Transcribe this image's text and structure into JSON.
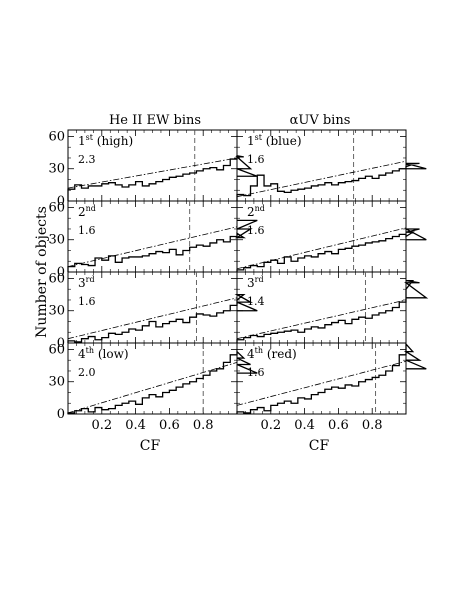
{
  "figure": {
    "ylabel": "Number of objects",
    "xlabel": "CF",
    "column_titles": [
      "He II EW bins",
      "αUV bins"
    ],
    "x_ticks": [
      "0.2",
      "0.4",
      "0.6",
      "0.8"
    ],
    "y_ticks": [
      "0",
      "30",
      "60"
    ]
  },
  "chart_data": [
    {
      "type": "histogram",
      "column": "He II EW bins",
      "row": 1,
      "label": "1st (high)",
      "label_main": "1",
      "label_sup": "st",
      "label_rest": " (high)",
      "value_text": "2.3",
      "ylim": [
        0,
        66
      ],
      "xlim": [
        0,
        1
      ],
      "dashed_vline": 0.75,
      "fit_line": [
        [
          0,
          12
        ],
        [
          1,
          40
        ]
      ],
      "bin_width": 0.04,
      "counts": [
        11,
        15,
        12,
        14,
        14,
        16,
        17,
        15,
        13,
        15,
        18,
        14,
        16,
        18,
        20,
        22,
        23,
        25,
        26,
        28,
        30,
        31,
        29,
        33,
        39,
        42,
        41,
        30,
        23
      ]
    },
    {
      "type": "histogram",
      "column": "αUV bins",
      "row": 1,
      "label": "1st (blue)",
      "label_main": "1",
      "label_sup": "st",
      "label_rest": " (blue)",
      "value_text": "1.6",
      "ylim": [
        0,
        66
      ],
      "xlim": [
        0,
        1
      ],
      "dashed_vline": 0.69,
      "fit_line": [
        [
          0,
          4
        ],
        [
          1,
          37
        ]
      ],
      "bin_width": 0.04,
      "counts": [
        6,
        5,
        14,
        24,
        14,
        16,
        9,
        8,
        10,
        11,
        12,
        14,
        15,
        17,
        15,
        17,
        18,
        19,
        21,
        23,
        21,
        24,
        26,
        28,
        30,
        32,
        34,
        35,
        30
      ]
    },
    {
      "type": "histogram",
      "column": "He II EW bins",
      "row": 2,
      "label": "2nd",
      "label_main": "2",
      "label_sup": "nd",
      "label_rest": "",
      "value_text": "1.6",
      "ylim": [
        0,
        66
      ],
      "xlim": [
        0,
        1
      ],
      "dashed_vline": 0.72,
      "fit_line": [
        [
          0,
          5
        ],
        [
          1,
          42
        ]
      ],
      "bin_width": 0.04,
      "counts": [
        5,
        8,
        7,
        6,
        13,
        11,
        15,
        9,
        13,
        14,
        14,
        15,
        17,
        19,
        18,
        21,
        16,
        20,
        23,
        25,
        24,
        27,
        30,
        28,
        33,
        36,
        32,
        40,
        48
      ]
    },
    {
      "type": "histogram",
      "column": "αUV bins",
      "row": 2,
      "label": "2nd",
      "label_main": "2",
      "label_sup": "nd",
      "label_rest": "",
      "value_text": "1.6",
      "ylim": [
        0,
        66
      ],
      "xlim": [
        0,
        1
      ],
      "dashed_vline": 0.69,
      "fit_line": [
        [
          0,
          3
        ],
        [
          1,
          41
        ]
      ],
      "bin_width": 0.04,
      "counts": [
        2,
        4,
        6,
        5,
        9,
        11,
        8,
        14,
        10,
        13,
        15,
        14,
        17,
        19,
        17,
        21,
        22,
        24,
        25,
        27,
        28,
        29,
        31,
        33,
        35,
        33,
        37,
        40,
        30
      ]
    },
    {
      "type": "histogram",
      "column": "He II EW bins",
      "row": 3,
      "label": "3rd",
      "label_main": "3",
      "label_sup": "rd",
      "label_rest": "",
      "value_text": "1.6",
      "ylim": [
        0,
        66
      ],
      "xlim": [
        0,
        1
      ],
      "dashed_vline": 0.76,
      "fit_line": [
        [
          0,
          4
        ],
        [
          1,
          42
        ]
      ],
      "bin_width": 0.04,
      "counts": [
        2,
        1,
        4,
        6,
        3,
        5,
        9,
        8,
        10,
        13,
        12,
        16,
        20,
        15,
        18,
        20,
        22,
        19,
        24,
        27,
        26,
        25,
        28,
        30,
        35,
        40,
        45,
        38,
        30
      ]
    },
    {
      "type": "histogram",
      "column": "αUV bins",
      "row": 3,
      "label": "3rd",
      "label_main": "3",
      "label_sup": "rd",
      "label_rest": "",
      "value_text": "1.4",
      "ylim": [
        0,
        66
      ],
      "xlim": [
        0,
        1
      ],
      "dashed_vline": 0.76,
      "fit_line": [
        [
          0,
          4
        ],
        [
          1,
          40
        ]
      ],
      "bin_width": 0.04,
      "counts": [
        3,
        5,
        7,
        6,
        8,
        9,
        10,
        11,
        12,
        10,
        13,
        15,
        14,
        17,
        19,
        21,
        18,
        22,
        24,
        23,
        26,
        28,
        30,
        33,
        38,
        50,
        58,
        56,
        42
      ]
    },
    {
      "type": "histogram",
      "column": "He II EW bins",
      "row": 4,
      "label": "4th (low)",
      "label_main": "4",
      "label_sup": "th",
      "label_rest": " (low)",
      "value_text": "2.0",
      "ylim": [
        0,
        66
      ],
      "xlim": [
        0,
        1
      ],
      "dashed_vline": 0.8,
      "fit_line": [
        [
          0,
          1
        ],
        [
          1,
          48
        ]
      ],
      "bin_width": 0.04,
      "counts": [
        1,
        3,
        5,
        2,
        6,
        4,
        5,
        8,
        10,
        12,
        9,
        15,
        18,
        16,
        20,
        22,
        25,
        28,
        30,
        33,
        36,
        40,
        42,
        48,
        55,
        58,
        52,
        46,
        38
      ]
    },
    {
      "type": "histogram",
      "column": "αUV bins",
      "row": 4,
      "label": "4th (red)",
      "label_main": "4",
      "label_sup": "th",
      "label_rest": " (red)",
      "value_text": "1.6",
      "ylim": [
        0,
        66
      ],
      "xlim": [
        0,
        1
      ],
      "dashed_vline": 0.82,
      "fit_line": [
        [
          0,
          8
        ],
        [
          1,
          49
        ]
      ],
      "bin_width": 0.04,
      "counts": [
        2,
        1,
        4,
        6,
        3,
        8,
        10,
        12,
        10,
        15,
        14,
        18,
        20,
        23,
        25,
        24,
        27,
        26,
        30,
        32,
        34,
        36,
        40,
        45,
        55,
        65,
        58,
        50,
        42
      ]
    }
  ]
}
